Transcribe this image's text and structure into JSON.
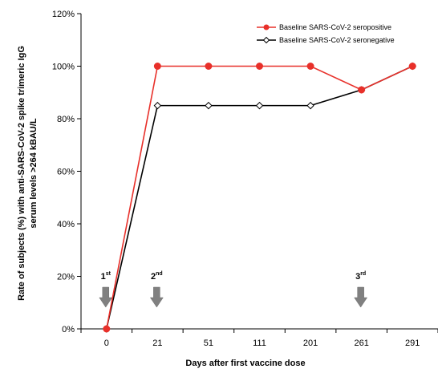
{
  "chart_data": {
    "type": "line",
    "categories": [
      "0",
      "21",
      "51",
      "111",
      "201",
      "261",
      "291"
    ],
    "series": [
      {
        "name": "Baseline SARS-CoV-2 seropositive",
        "color": "#e8302a",
        "marker": "filled-circle",
        "points": [
          {
            "x": "0",
            "y": 0
          },
          {
            "x": "21",
            "y": 100
          },
          {
            "x": "51",
            "y": 100
          },
          {
            "x": "111",
            "y": 100
          },
          {
            "x": "201",
            "y": 100
          },
          {
            "x": "261",
            "y": 91
          },
          {
            "x": "291",
            "y": 100
          }
        ]
      },
      {
        "name": "Baseline SARS-CoV-2 seronegative",
        "color": "#000000",
        "marker": "open-diamond",
        "points": [
          {
            "x": "0",
            "y": 0
          },
          {
            "x": "21",
            "y": 85
          },
          {
            "x": "51",
            "y": 85
          },
          {
            "x": "111",
            "y": 85
          },
          {
            "x": "201",
            "y": 85
          },
          {
            "x": "261",
            "y": 91
          },
          {
            "x": "291",
            "y": 100
          }
        ]
      }
    ],
    "xlabel": "Days after first vaccine dose",
    "ylabel_lines": [
      "Rate of subjects (%) with anti-SARS-CoV-2 spike trimeric IgG",
      "serum levels >264 kBAU/L"
    ],
    "ylim": [
      0,
      120
    ],
    "yticks": [
      "0%",
      "20%",
      "40%",
      "60%",
      "80%",
      "100%",
      "120%"
    ],
    "legend_position": "top-right",
    "grid": false,
    "annotations": [
      {
        "label": "1",
        "sup": "st",
        "at": "0"
      },
      {
        "label": "2",
        "sup": "nd",
        "at": "21"
      },
      {
        "label": "3",
        "sup": "rd",
        "at": "261"
      }
    ],
    "annotation_arrow_color": "#808080"
  }
}
